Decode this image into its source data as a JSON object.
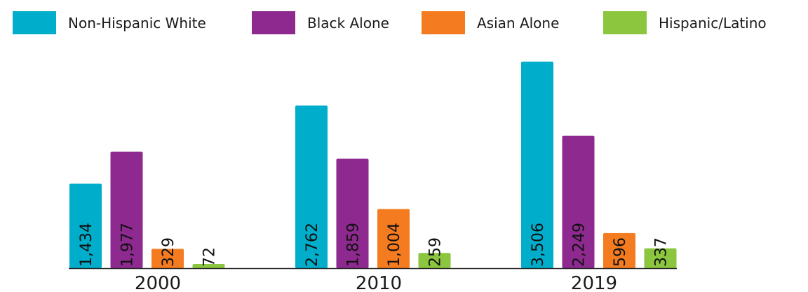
{
  "chart_data": {
    "type": "bar",
    "categories": [
      "2000",
      "2010",
      "2019"
    ],
    "series": [
      {
        "name": "Non-Hispanic White",
        "color": "#00AECB",
        "values": [
          1434,
          2762,
          3506
        ],
        "labels": [
          "1,434",
          "2,762",
          "3,506"
        ]
      },
      {
        "name": "Black Alone",
        "color": "#8E2A8F",
        "values": [
          1977,
          1859,
          2249
        ],
        "labels": [
          "1,977",
          "1,859",
          "2,249"
        ]
      },
      {
        "name": "Asian Alone",
        "color": "#F47B20",
        "values": [
          329,
          1004,
          596
        ],
        "labels": [
          "329",
          "1,004",
          "596"
        ]
      },
      {
        "name": "Hispanic/Latino",
        "color": "#8CC63F",
        "values": [
          72,
          259,
          337
        ],
        "labels": [
          "72",
          "259",
          "337"
        ]
      }
    ],
    "title": "",
    "xlabel": "",
    "ylabel": "",
    "ylim": [
      0,
      3600
    ],
    "grid": false,
    "legend": "top"
  }
}
